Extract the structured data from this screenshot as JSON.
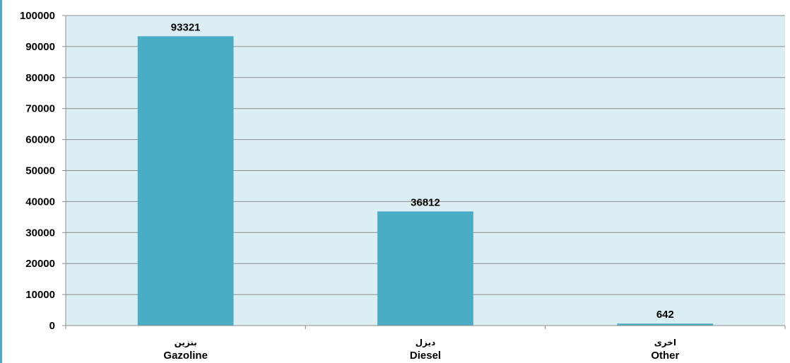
{
  "chart_data": {
    "type": "bar",
    "categories": [
      {
        "label_ar": "بنزين",
        "label_en": "Gazoline"
      },
      {
        "label_ar": "ديزل",
        "label_en": "Diesel"
      },
      {
        "label_ar": "اخرى",
        "label_en": "Other"
      }
    ],
    "values": [
      93321,
      36812,
      642
    ],
    "data_labels": [
      "93321",
      "36812",
      "642"
    ],
    "ylim": [
      0,
      100000
    ],
    "yticks": [
      0,
      10000,
      20000,
      30000,
      40000,
      50000,
      60000,
      70000,
      80000,
      90000,
      100000
    ],
    "ytick_labels": [
      "0",
      "10000",
      "20000",
      "30000",
      "40000",
      "50000",
      "60000",
      "70000",
      "80000",
      "90000",
      "100000"
    ],
    "grid": true,
    "colors": {
      "bar": "#4bacc6",
      "plot_background": "#dbeef3",
      "gridline": "#8c8c8c",
      "accent_rule": "#4bacc6"
    }
  }
}
